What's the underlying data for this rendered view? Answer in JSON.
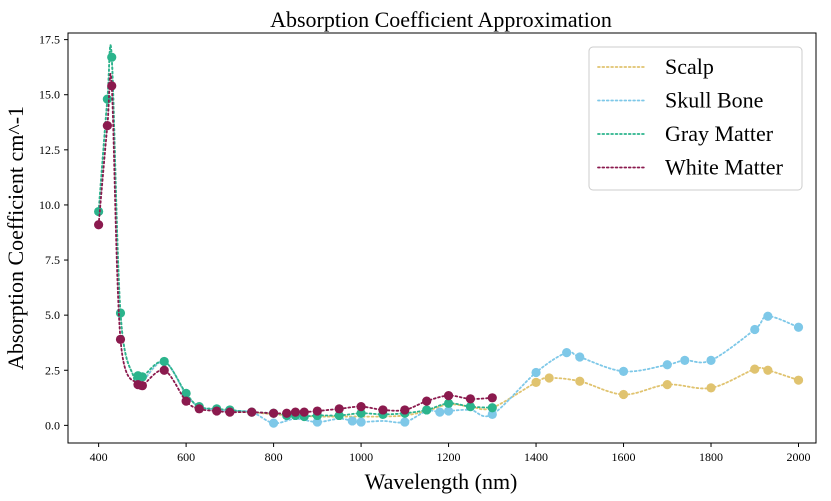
{
  "chart_data": {
    "type": "line",
    "title": "Absorption Coefficient Approximation",
    "xlabel": "Wavelength (nm)",
    "ylabel": "Absorption Coefficient cm^-1",
    "xlim": [
      330,
      2040
    ],
    "ylim": [
      -0.8,
      17.8
    ],
    "xticks": [
      400,
      600,
      800,
      1000,
      1200,
      1400,
      1600,
      1800,
      2000
    ],
    "yticks": [
      0.0,
      2.5,
      5.0,
      7.5,
      10.0,
      12.5,
      15.0,
      17.5
    ],
    "xtick_labels": [
      "400",
      "600",
      "800",
      "1000",
      "1200",
      "1400",
      "1600",
      "1800",
      "2000"
    ],
    "ytick_labels": [
      "0.0",
      "2.5",
      "5.0",
      "7.5",
      "10.0",
      "12.5",
      "15.0",
      "17.5"
    ],
    "grid": false,
    "legend_position": "top-right",
    "series": [
      {
        "name": "Scalp",
        "color": "#e0c36f",
        "x": [
          400,
          420,
          430,
          450,
          480,
          490,
          500,
          550,
          600,
          630,
          670,
          700,
          750,
          800,
          850,
          900,
          950,
          980,
          1000,
          1050,
          1100,
          1150,
          1200,
          1250,
          1300,
          1400,
          1430,
          1500,
          1600,
          1700,
          1800,
          1900,
          1930,
          2000
        ],
        "y": [
          9.7,
          14.8,
          16.7,
          5.1,
          2.2,
          2.1,
          2.0,
          2.9,
          1.4,
          0.85,
          0.7,
          0.65,
          0.6,
          0.5,
          0.45,
          0.4,
          0.4,
          0.4,
          0.4,
          0.4,
          0.45,
          0.65,
          0.95,
          0.85,
          0.8,
          1.95,
          2.15,
          2.0,
          1.4,
          1.85,
          1.7,
          2.55,
          2.5,
          2.05
        ],
        "markers": [
          1400,
          1430,
          1500,
          1600,
          1700,
          1800,
          1900,
          1930,
          2000
        ]
      },
      {
        "name": "Skull Bone",
        "color": "#7ec8e8",
        "x": [
          400,
          420,
          430,
          450,
          480,
          490,
          500,
          550,
          600,
          630,
          670,
          700,
          750,
          800,
          850,
          900,
          950,
          980,
          1000,
          1050,
          1100,
          1150,
          1180,
          1200,
          1250,
          1300,
          1400,
          1470,
          1500,
          1600,
          1700,
          1740,
          1800,
          1900,
          1930,
          2000
        ],
        "y": [
          9.7,
          14.8,
          16.7,
          5.1,
          2.2,
          2.1,
          2.0,
          2.9,
          1.4,
          0.85,
          0.7,
          0.65,
          0.6,
          0.1,
          0.3,
          0.15,
          0.3,
          0.2,
          0.15,
          0.2,
          0.15,
          0.65,
          0.6,
          0.65,
          0.7,
          0.5,
          2.4,
          3.3,
          3.1,
          2.45,
          2.75,
          2.95,
          2.95,
          4.35,
          4.95,
          4.45
        ],
        "markers": [
          800,
          900,
          980,
          1000,
          1100,
          1180,
          1200,
          1300,
          1400,
          1470,
          1500,
          1600,
          1700,
          1740,
          1800,
          1900,
          1930,
          2000
        ]
      },
      {
        "name": "Gray Matter",
        "color": "#2bb48c",
        "x": [
          400,
          420,
          430,
          450,
          480,
          490,
          500,
          550,
          600,
          630,
          670,
          700,
          750,
          800,
          820,
          830,
          840,
          850,
          860,
          870,
          900,
          950,
          1000,
          1050,
          1100,
          1150,
          1200,
          1250,
          1300
        ],
        "y": [
          9.7,
          14.8,
          16.7,
          5.1,
          2.2,
          2.25,
          2.2,
          2.9,
          1.45,
          0.85,
          0.75,
          0.7,
          0.6,
          0.55,
          0.5,
          0.45,
          0.5,
          0.45,
          0.45,
          0.4,
          0.45,
          0.45,
          0.55,
          0.5,
          0.55,
          0.7,
          1.0,
          0.85,
          0.8
        ],
        "markers": [
          400,
          420,
          430,
          450,
          490,
          500,
          550,
          600,
          630,
          670,
          700,
          750,
          800,
          830,
          850,
          870,
          900,
          950,
          1000,
          1050,
          1100,
          1150,
          1200,
          1250,
          1300
        ]
      },
      {
        "name": "White Matter",
        "color": "#8b1a4e",
        "x": [
          400,
          420,
          430,
          450,
          490,
          500,
          550,
          600,
          630,
          670,
          700,
          750,
          800,
          830,
          850,
          870,
          900,
          950,
          1000,
          1050,
          1100,
          1150,
          1200,
          1250,
          1300
        ],
        "y": [
          9.1,
          13.6,
          15.4,
          3.9,
          1.85,
          1.8,
          2.5,
          1.1,
          0.75,
          0.65,
          0.6,
          0.6,
          0.55,
          0.55,
          0.6,
          0.6,
          0.65,
          0.75,
          0.85,
          0.7,
          0.7,
          1.1,
          1.35,
          1.2,
          1.25
        ],
        "markers": [
          400,
          420,
          430,
          450,
          490,
          500,
          550,
          600,
          630,
          670,
          700,
          750,
          800,
          830,
          850,
          870,
          900,
          950,
          1000,
          1050,
          1100,
          1150,
          1200,
          1250,
          1300
        ]
      }
    ]
  }
}
